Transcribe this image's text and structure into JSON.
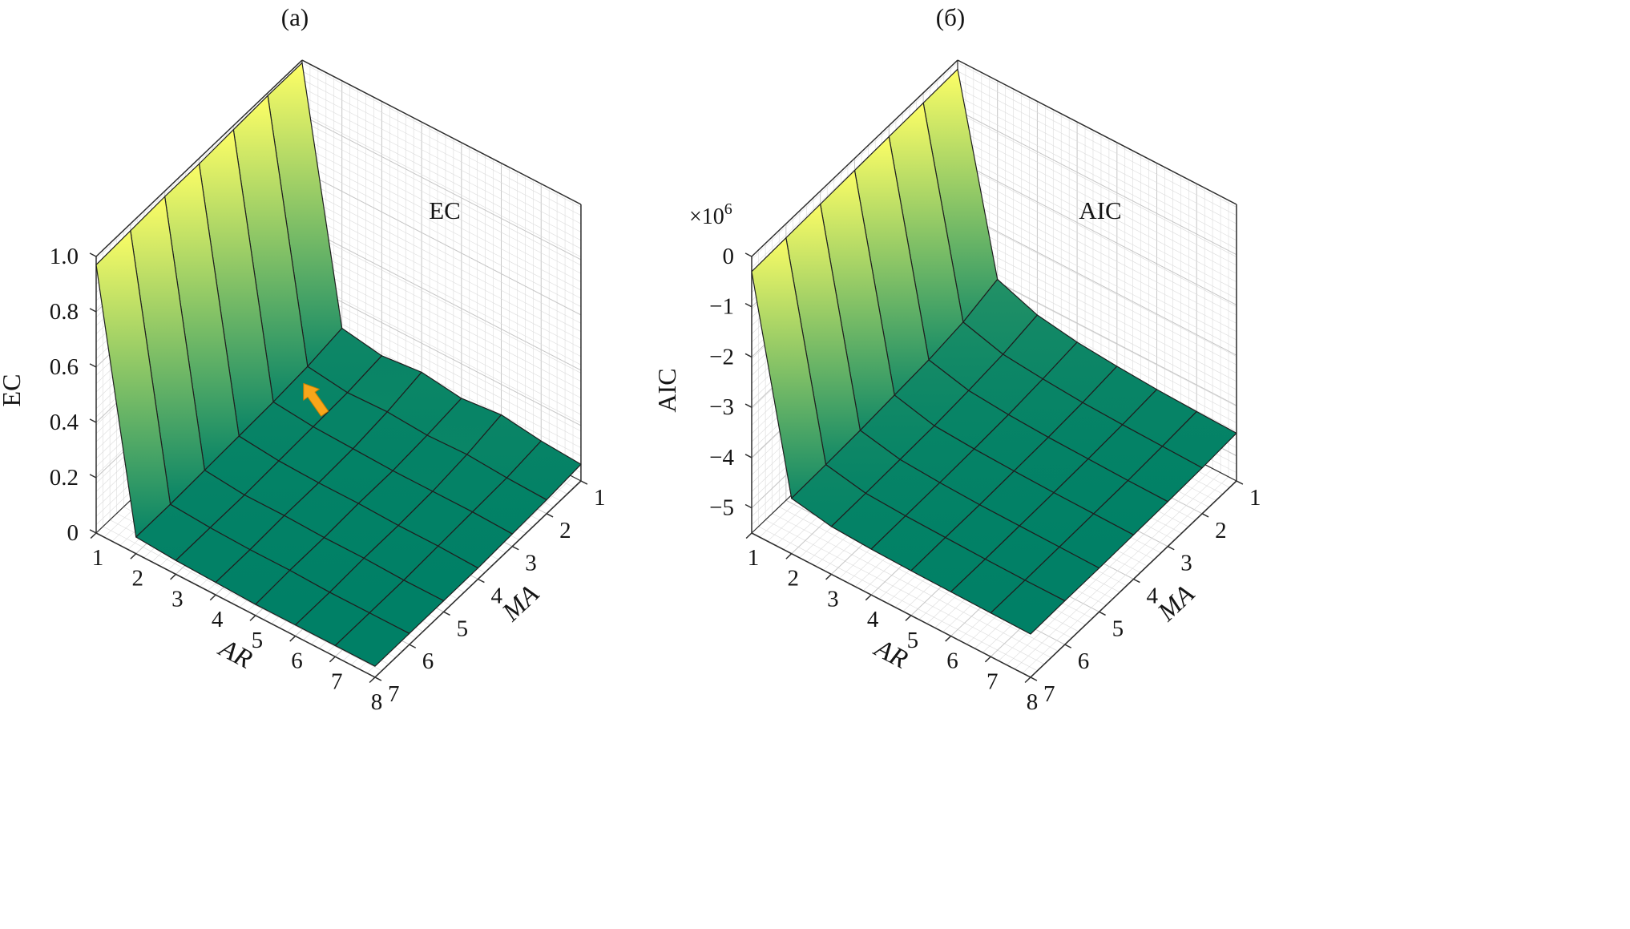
{
  "figure": {
    "background": "#ffffff",
    "description": "Two 3D surface plots of model selection criteria over ARMA model orders"
  },
  "colors": {
    "colormap_low": "#008066",
    "colormap_high": "#ffff66",
    "mesh": "#1f1f1f",
    "grid_minor": "#dcdcdc",
    "grid_major": "#c6c6c6",
    "box_edge": "#2e2e2e",
    "wall_fill": "#ffffff",
    "text": "#151515",
    "arrow": "#F9A61A",
    "arrow_edge": "#c77f00"
  },
  "chart_data": [
    {
      "id": "a",
      "type": "surface",
      "title": "(а)",
      "inplot_label": "EC",
      "x_axis": {
        "label": "AR",
        "values": [
          1,
          2,
          3,
          4,
          5,
          6,
          7,
          8
        ],
        "ticks": [
          "1",
          "2",
          "3",
          "4",
          "5",
          "6",
          "7",
          "8"
        ]
      },
      "y_axis": {
        "label": "MA",
        "values": [
          1,
          2,
          3,
          4,
          5,
          6,
          7
        ],
        "ticks": [
          "1",
          "2",
          "3",
          "4",
          "5",
          "6",
          "7"
        ]
      },
      "z_axis": {
        "label": "EC",
        "range": [
          0,
          1.0
        ],
        "tick_values": [
          0,
          0.2,
          0.4,
          0.6,
          0.8,
          1.0
        ],
        "tick_labels": [
          "0",
          "0.2",
          "0.4",
          "0.6",
          "0.8",
          "1.0"
        ],
        "multiplier": null
      },
      "z": [
        [
          0.99,
          0.99,
          0.985,
          0.98,
          0.98,
          0.975,
          0.97
        ],
        [
          0.105,
          0.085,
          0.075,
          0.07,
          0.065,
          0.06,
          0.06
        ],
        [
          0.08,
          0.065,
          0.06,
          0.055,
          0.05,
          0.05,
          0.05
        ],
        [
          0.095,
          0.07,
          0.055,
          0.05,
          0.05,
          0.045,
          0.045
        ],
        [
          0.075,
          0.06,
          0.05,
          0.05,
          0.045,
          0.045,
          0.04
        ],
        [
          0.09,
          0.065,
          0.05,
          0.045,
          0.045,
          0.04,
          0.04
        ],
        [
          0.07,
          0.055,
          0.05,
          0.045,
          0.04,
          0.04,
          0.04
        ],
        [
          0.06,
          0.05,
          0.045,
          0.04,
          0.04,
          0.04,
          0.04
        ]
      ],
      "annotation": {
        "type": "arrow",
        "AR": 2.2,
        "MA": 2.35,
        "z_at": 0.08,
        "angle_deg": -35
      }
    },
    {
      "id": "b",
      "type": "surface",
      "title": "(б)",
      "inplot_label": "AIC",
      "x_axis": {
        "label": "AR",
        "values": [
          1,
          2,
          3,
          4,
          5,
          6,
          7,
          8
        ],
        "ticks": [
          "1",
          "2",
          "3",
          "4",
          "5",
          "6",
          "7",
          "8"
        ]
      },
      "y_axis": {
        "label": "MA",
        "values": [
          1,
          2,
          3,
          4,
          5,
          6,
          7
        ],
        "ticks": [
          "1",
          "2",
          "3",
          "4",
          "5",
          "6",
          "7"
        ]
      },
      "z_axis": {
        "label": "AIC",
        "range": [
          -5.5,
          0
        ],
        "tick_values": [
          0,
          -1,
          -2,
          -3,
          -4,
          -5
        ],
        "tick_labels": [
          "0",
          "−1",
          "−2",
          "−3",
          "−4",
          "−5"
        ],
        "multiplier": {
          "base": "×10",
          "exponent": "6"
        }
      },
      "z_units": "1e6",
      "z": [
        [
          -0.18,
          -0.2,
          -0.22,
          -0.24,
          -0.26,
          -0.28,
          -0.3
        ],
        [
          -3.95,
          -4.15,
          -4.25,
          -4.3,
          -4.35,
          -4.38,
          -4.4
        ],
        [
          -4.25,
          -4.38,
          -4.45,
          -4.5,
          -4.52,
          -4.54,
          -4.55
        ],
        [
          -4.38,
          -4.46,
          -4.52,
          -4.55,
          -4.57,
          -4.58,
          -4.59
        ],
        [
          -4.45,
          -4.52,
          -4.56,
          -4.58,
          -4.6,
          -4.6,
          -4.61
        ],
        [
          -4.5,
          -4.55,
          -4.58,
          -4.6,
          -4.61,
          -4.62,
          -4.62
        ],
        [
          -4.53,
          -4.57,
          -4.6,
          -4.61,
          -4.62,
          -4.63,
          -4.63
        ],
        [
          -4.55,
          -4.59,
          -4.61,
          -4.62,
          -4.63,
          -4.63,
          -4.64
        ]
      ],
      "annotation": null
    }
  ]
}
